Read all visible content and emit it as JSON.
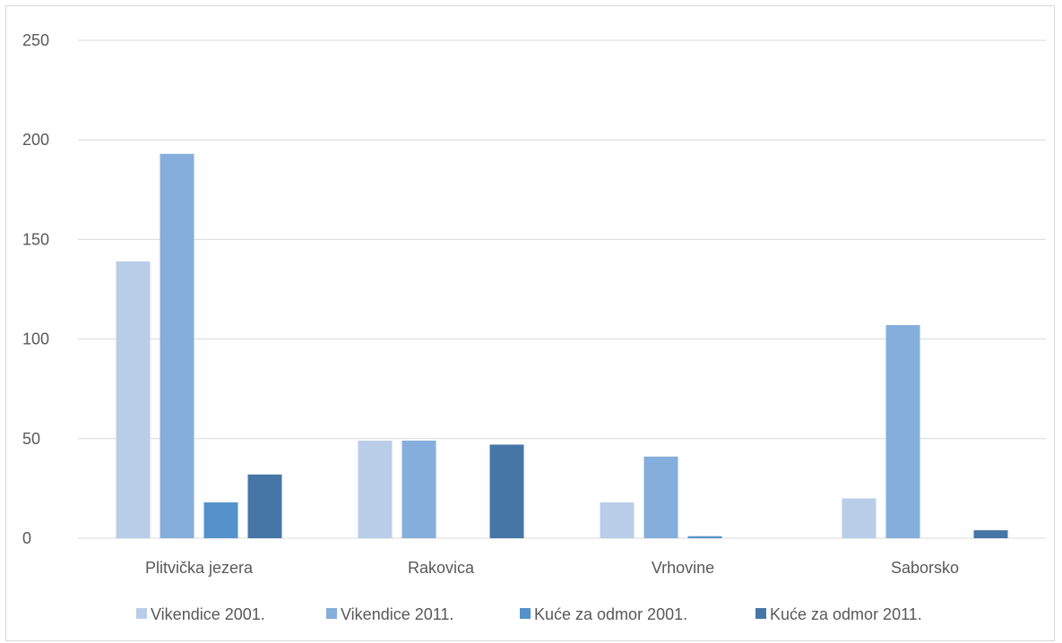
{
  "chart_data": {
    "type": "bar",
    "title": "",
    "xlabel": "",
    "ylabel": "",
    "categories": [
      "Plitvička jezera",
      "Rakovica",
      "Vrhovine",
      "Saborsko"
    ],
    "series": [
      {
        "name": "Vikendice 2001.",
        "color": "#b9cde8",
        "values": [
          139,
          49,
          18,
          20
        ]
      },
      {
        "name": "Vikendice 2011.",
        "color": "#86aedc",
        "values": [
          193,
          49,
          41,
          107
        ]
      },
      {
        "name": "Kuće za odmor 2001.",
        "color": "#5592cb",
        "values": [
          18,
          0,
          1,
          0
        ]
      },
      {
        "name": "Kuće za odmor 2011.",
        "color": "#4676a6",
        "values": [
          32,
          47,
          0,
          4
        ]
      }
    ],
    "ylim": [
      0,
      250
    ],
    "yticks": [
      0,
      50,
      100,
      150,
      200,
      250
    ],
    "grid": true,
    "legend": "bottom"
  }
}
